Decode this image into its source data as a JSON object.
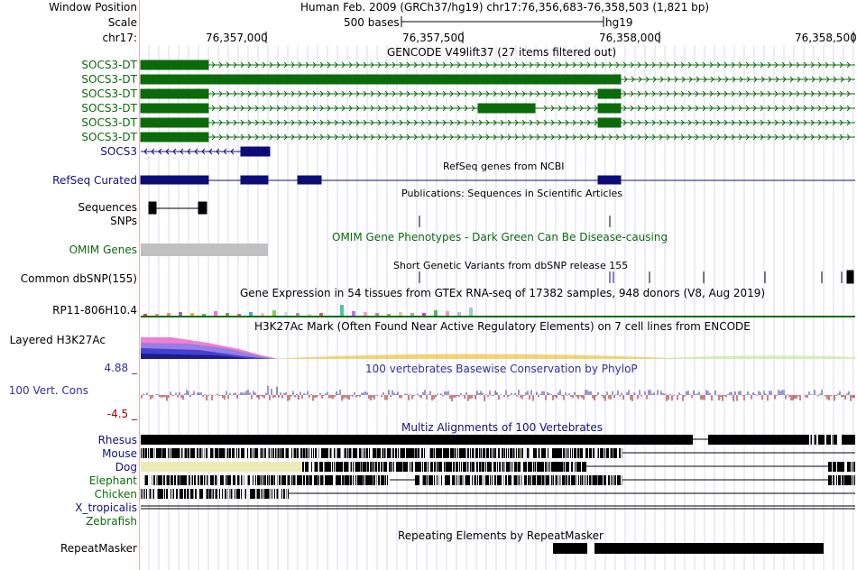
{
  "colors": {
    "gencode": "#0b6b0b",
    "refseq": "#0c0c78",
    "omimGreen": "#0b6b0b",
    "omimGray": "#c0c0c0",
    "phylop": "#3030a0",
    "conservation_neg": "#a00000",
    "label_blue": "#101080",
    "grid": "#c8c8f0"
  },
  "header": {
    "window_position_label": "Window Position",
    "window_position_value": "Human Feb. 2009 (GRCh37/hg19)   chr17:76,356,683-76,358,503 (1,821 bp)",
    "scale_label": "Scale",
    "scale_bases": "500 bases",
    "scale_assembly": "hg19",
    "chrom_label": "chr17:",
    "ticks": [
      "76,357,000",
      "76,357,500",
      "76,358,000",
      "76,358,500"
    ]
  },
  "tracks": {
    "gencode": {
      "title": "GENCODE V49lift37 (27 items filtered out)",
      "labels": [
        "SOCS3-DT",
        "SOCS3-DT",
        "SOCS3-DT",
        "SOCS3-DT",
        "SOCS3-DT",
        "SOCS3-DT",
        "SOCS3"
      ]
    },
    "refseq": {
      "title": "RefSeq genes from NCBI",
      "label": "RefSeq Curated"
    },
    "publications": {
      "title": "Publications: Sequences in Scientific Articles",
      "label": "Sequences",
      "snps_label": "SNPs"
    },
    "omim": {
      "title": "OMIM Gene Phenotypes - Dark Green Can Be Disease-causing",
      "label": "OMIM Genes"
    },
    "dbsnp": {
      "title": "Short Genetic Variants from dbSNP release 155",
      "label": "Common dbSNP(155)"
    },
    "gtex": {
      "title": "Gene Expression in 54 tissues from GTEx RNA-seq of 17382 samples, 948 donors (V8, Aug 2019)",
      "label": "RP11-806H10.4"
    },
    "h3k27ac": {
      "title": "H3K27Ac Mark (Often Found Near Active Regulatory Elements) on 7 cell lines from ENCODE",
      "label": "Layered H3K27Ac"
    },
    "phylop": {
      "title": "100 vertebrates Basewise Conservation by PhyloP",
      "label": "100 Vert. Cons",
      "max": "4.88 _",
      "min": "-4.5 _"
    },
    "multiz": {
      "title": "Multiz Alignments of 100 Vertebrates",
      "species": [
        "Rhesus",
        "Mouse",
        "Dog",
        "Elephant",
        "Chicken",
        "X_tropicalis",
        "Zebrafish"
      ]
    },
    "repeatmasker": {
      "title": "Repeating Elements by RepeatMasker",
      "label": "RepeatMasker"
    }
  }
}
